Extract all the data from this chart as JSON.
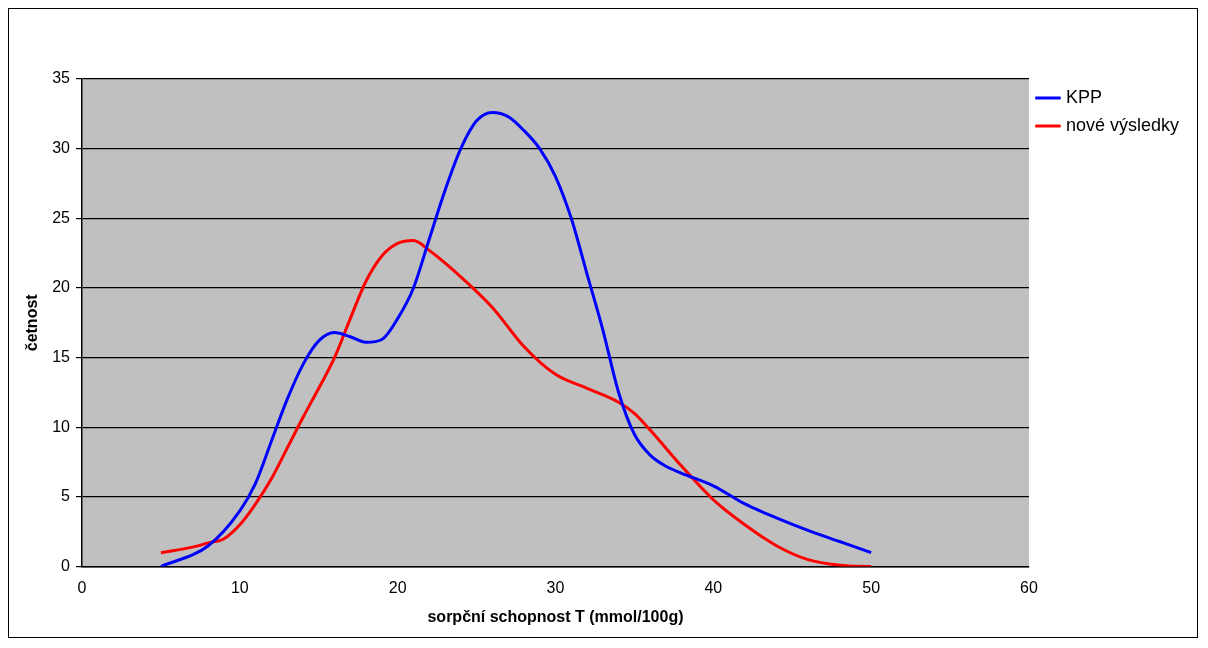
{
  "chart_data": {
    "type": "line",
    "xlabel": "sorpční schopnost T (mmol/100g)",
    "ylabel": "četnost",
    "xlim": [
      0,
      60
    ],
    "xticks": [
      0,
      10,
      20,
      30,
      40,
      50,
      60
    ],
    "ylim": [
      0,
      35
    ],
    "yticks": [
      0,
      5,
      10,
      15,
      20,
      25,
      30,
      35
    ],
    "grid": "y",
    "legend": "right",
    "marker": "none",
    "line_style": "solid",
    "series": [
      {
        "name": "KPP",
        "color": "#0000ff",
        "x": [
          5,
          8,
          10,
          11,
          12,
          13,
          14,
          15,
          16,
          17,
          18,
          19,
          20,
          21,
          22,
          23,
          24,
          25,
          26,
          27,
          28,
          29,
          30,
          31,
          32,
          33,
          34,
          35,
          36,
          37,
          38,
          40,
          42,
          44,
          46,
          48,
          50
        ],
        "values": [
          0,
          1.5,
          4,
          6,
          9,
          12,
          14.5,
          16.2,
          16.8,
          16.5,
          16.1,
          16.3,
          17.8,
          20,
          23.5,
          27,
          30,
          32,
          32.6,
          32.3,
          31.3,
          30,
          28,
          25,
          21,
          17,
          12.5,
          9.5,
          8,
          7.2,
          6.7,
          5.8,
          4.5,
          3.5,
          2.6,
          1.8,
          1
        ]
      },
      {
        "name": "nové výsledky",
        "color": "#ff0000",
        "x": [
          5,
          7,
          8,
          9,
          10,
          11,
          12,
          13,
          14,
          15,
          16,
          17,
          18,
          19,
          20,
          21,
          22,
          24,
          26,
          28,
          30,
          32,
          34,
          35,
          36,
          38,
          40,
          42,
          44,
          46,
          48,
          50
        ],
        "values": [
          1,
          1.4,
          1.7,
          2,
          3,
          4.5,
          6.3,
          8.5,
          10.7,
          12.8,
          15,
          17.8,
          20.5,
          22.3,
          23.2,
          23.4,
          22.7,
          20.8,
          18.6,
          15.8,
          13.8,
          12.8,
          11.8,
          11,
          9.8,
          7.2,
          4.8,
          3,
          1.5,
          0.5,
          0.1,
          0
        ]
      }
    ]
  }
}
